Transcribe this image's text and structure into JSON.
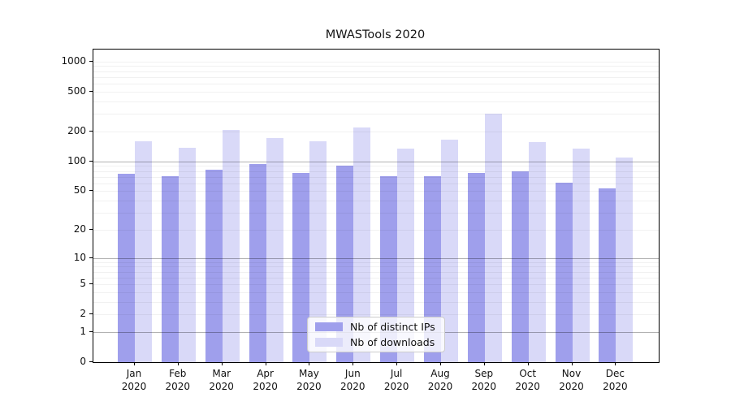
{
  "title": "MWASTools 2020",
  "year": "2020",
  "months": [
    "Jan",
    "Feb",
    "Mar",
    "Apr",
    "May",
    "Jun",
    "Jul",
    "Aug",
    "Sep",
    "Oct",
    "Nov",
    "Dec"
  ],
  "legend": {
    "items": [
      {
        "label": "Nb of distinct IPs",
        "color": "#9f9fec"
      },
      {
        "label": "Nb of downloads",
        "color": "#d9d9f8"
      }
    ]
  },
  "chart_data": {
    "type": "bar",
    "title": "MWASTools 2020",
    "categories": [
      "Jan 2020",
      "Feb 2020",
      "Mar 2020",
      "Apr 2020",
      "May 2020",
      "Jun 2020",
      "Jul 2020",
      "Aug 2020",
      "Sep 2020",
      "Oct 2020",
      "Nov 2020",
      "Dec 2020"
    ],
    "series": [
      {
        "name": "Nb of distinct IPs",
        "color": "#9f9fec",
        "values": [
          75,
          71,
          83,
          94,
          77,
          91,
          71,
          71,
          77,
          80,
          61,
          53
        ]
      },
      {
        "name": "Nb of downloads",
        "color": "#d9d9f8",
        "values": [
          158,
          138,
          207,
          170,
          158,
          219,
          135,
          165,
          300,
          156,
          135,
          109
        ]
      }
    ],
    "xlabel": "",
    "ylabel": "",
    "yscale": "log1p",
    "ylim": [
      0,
      1100
    ],
    "yticks": [
      0,
      1,
      2,
      5,
      10,
      20,
      50,
      100,
      200,
      500,
      1000
    ],
    "grid": true,
    "legend_position": "lower center"
  }
}
